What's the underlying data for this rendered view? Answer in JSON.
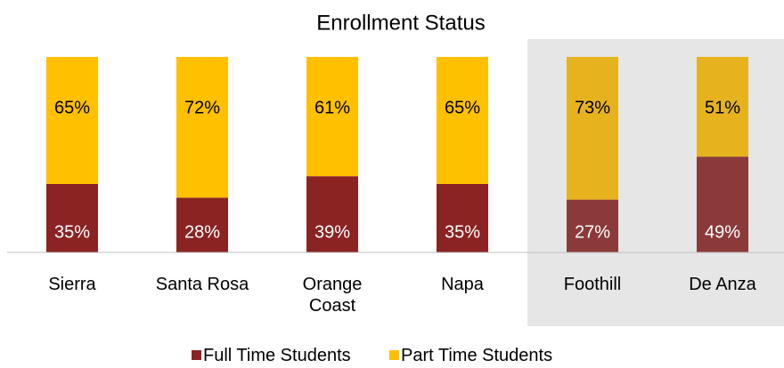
{
  "chart_data": {
    "type": "stacked_bar",
    "title": "Enrollment Status",
    "categories": [
      "Sierra",
      "Santa Rosa",
      "Orange Coast",
      "Napa",
      "Foothill",
      "De Anza"
    ],
    "series": [
      {
        "name": "Full Time Students",
        "color": "#8b2323",
        "highlight_color": "#8b3a3a",
        "values": [
          35,
          28,
          39,
          35,
          27,
          49
        ],
        "value_labels": [
          "35%",
          "28%",
          "39%",
          "35%",
          "27%",
          "49%"
        ]
      },
      {
        "name": "Part Time Students",
        "color": "#ffc000",
        "highlight_color": "#e6b31e",
        "values": [
          65,
          72,
          61,
          65,
          73,
          51
        ],
        "value_labels": [
          "65%",
          "72%",
          "61%",
          "65%",
          "73%",
          "51%"
        ]
      }
    ],
    "highlighted": [
      4,
      5
    ],
    "ylim": [
      0,
      100
    ]
  }
}
